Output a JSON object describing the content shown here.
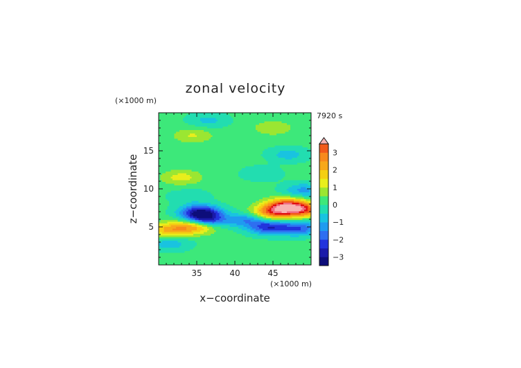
{
  "chart_data": {
    "type": "heatmap",
    "title": "zonal velocity",
    "xlabel": "x−coordinate",
    "ylabel": "z−coordinate",
    "x_unit": "(×1000 m)",
    "y_unit": "(×1000 m)",
    "time_label": "7920 s",
    "xlim": [
      30,
      50
    ],
    "ylim": [
      0,
      20
    ],
    "x_ticks": [
      "35",
      "40",
      "45"
    ],
    "y_ticks": [
      "5",
      "10",
      "15"
    ],
    "colorbar": {
      "ticks": [
        "3",
        "2",
        "1",
        "0",
        "−1",
        "−2",
        "−3"
      ],
      "min": -3.5,
      "max": 3.5,
      "step": 0.5,
      "extend": "max",
      "colors": [
        "#0d0d7a",
        "#1a1aaa",
        "#2233dd",
        "#2e6ef0",
        "#1f9bf0",
        "#19c3e0",
        "#22ddb0",
        "#3de87a",
        "#9be632",
        "#e8ee1c",
        "#f4cf12",
        "#f7a81a",
        "#f88a1c",
        "#f25a1a",
        "#e11010",
        "#f06a80",
        "#f7b3b3"
      ]
    },
    "features": [
      {
        "x": 35.5,
        "z": 6.9,
        "value": -3.2
      },
      {
        "x": 36.2,
        "z": 5.8,
        "value": -2.8
      },
      {
        "x": 41.5,
        "z": 5.9,
        "value": -1.5
      },
      {
        "x": 44.5,
        "z": 4.9,
        "value": -2.4
      },
      {
        "x": 48.5,
        "z": 4.8,
        "value": -2.0
      },
      {
        "x": 31.5,
        "z": 2.8,
        "value": -1.0
      },
      {
        "x": 35.0,
        "z": 5.1,
        "value": 2.6
      },
      {
        "x": 31.5,
        "z": 4.6,
        "value": 2.0
      },
      {
        "x": 45.0,
        "z": 6.9,
        "value": 2.8
      },
      {
        "x": 46.8,
        "z": 7.8,
        "value": 3.3
      },
      {
        "x": 49.0,
        "z": 7.2,
        "value": 2.7
      },
      {
        "x": 33.0,
        "z": 11.5,
        "value": 1.1
      },
      {
        "x": 34.5,
        "z": 17.0,
        "value": 0.9
      },
      {
        "x": 45.0,
        "z": 18.0,
        "value": 0.8
      },
      {
        "x": 36.5,
        "z": 19.0,
        "value": -0.8
      },
      {
        "x": 49.0,
        "z": 9.8,
        "value": -1.3
      },
      {
        "x": 47.0,
        "z": 14.5,
        "value": -0.9
      },
      {
        "x": 43.5,
        "z": 12.0,
        "value": -0.6
      },
      {
        "x": 34.0,
        "z": 9.0,
        "value": -0.6
      }
    ]
  }
}
